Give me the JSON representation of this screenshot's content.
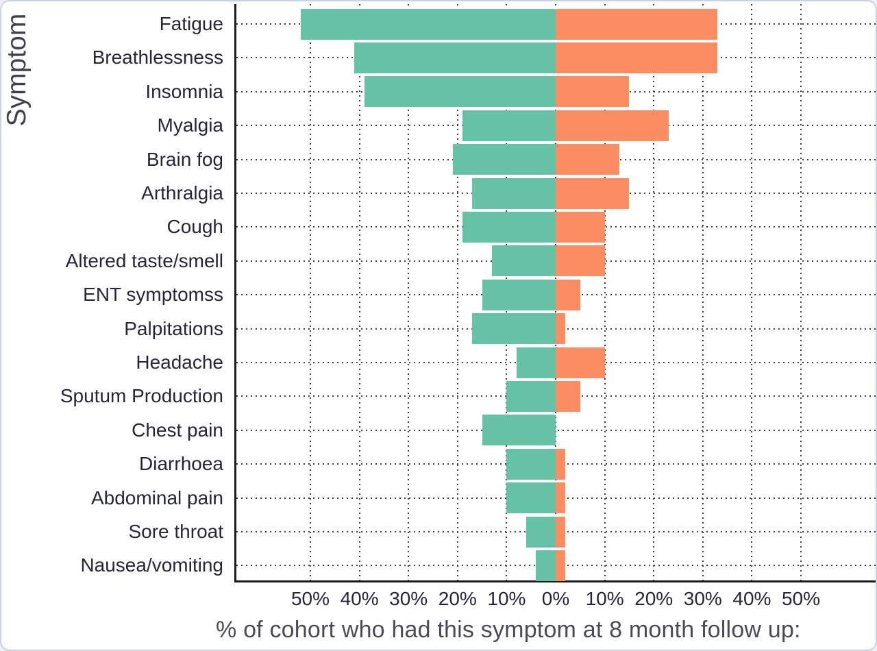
{
  "chart_data": {
    "type": "bar",
    "variant": "diverging-horizontal",
    "title": "",
    "ylabel": "Symptom",
    "xlabel": "% of cohort who had this symptom at 8 month follow up:",
    "categories": [
      "Fatigue",
      "Breathlessness",
      "Insomnia",
      "Myalgia",
      "Brain fog",
      "Arthralgia",
      "Cough",
      "Altered taste/smell",
      "ENT symptomss",
      "Palpitations",
      "Headache",
      "Sputum Production",
      "Chest pain",
      "Diarrhoea",
      "Abdominal pain",
      "Sore throat",
      "Nausea/vomiting"
    ],
    "series": [
      {
        "name": "left",
        "direction": "left",
        "color": "#66C2A5",
        "values": [
          52,
          41,
          39,
          19,
          21,
          17,
          19,
          13,
          15,
          17,
          8,
          10,
          15,
          10,
          10,
          6,
          4
        ]
      },
      {
        "name": "right",
        "direction": "right",
        "color": "#FC8D62",
        "values": [
          33,
          33,
          15,
          23,
          13,
          15,
          10,
          10,
          5,
          2,
          10,
          5,
          0,
          2,
          2,
          2,
          2
        ]
      }
    ],
    "x_tick_labels": [
      "50%",
      "40%",
      "30%",
      "20%",
      "10%",
      "0%",
      "10%",
      "20%",
      "30%",
      "40%",
      "50%"
    ],
    "x_tick_values": [
      -50,
      -40,
      -30,
      -20,
      -10,
      0,
      10,
      20,
      30,
      40,
      50
    ],
    "xlim": [
      -65,
      66
    ],
    "grid": "dotted",
    "legend_position": "none",
    "axis_color": "#1b1b1b",
    "text_color": "#26263a"
  }
}
